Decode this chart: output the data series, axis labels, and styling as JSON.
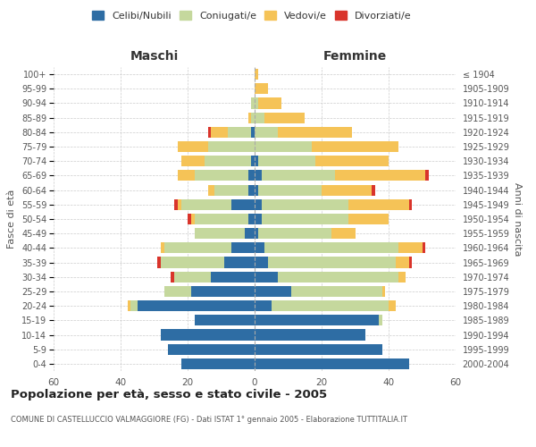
{
  "age_groups": [
    "0-4",
    "5-9",
    "10-14",
    "15-19",
    "20-24",
    "25-29",
    "30-34",
    "35-39",
    "40-44",
    "45-49",
    "50-54",
    "55-59",
    "60-64",
    "65-69",
    "70-74",
    "75-79",
    "80-84",
    "85-89",
    "90-94",
    "95-99",
    "100+"
  ],
  "birth_years": [
    "2000-2004",
    "1995-1999",
    "1990-1994",
    "1985-1989",
    "1980-1984",
    "1975-1979",
    "1970-1974",
    "1965-1969",
    "1960-1964",
    "1955-1959",
    "1950-1954",
    "1945-1949",
    "1940-1944",
    "1935-1939",
    "1930-1934",
    "1925-1929",
    "1920-1924",
    "1915-1919",
    "1910-1914",
    "1905-1909",
    "≤ 1904"
  ],
  "males": {
    "celibe": [
      22,
      26,
      28,
      18,
      35,
      19,
      13,
      9,
      7,
      3,
      2,
      7,
      2,
      2,
      1,
      0,
      1,
      0,
      0,
      0,
      0
    ],
    "coniugato": [
      0,
      0,
      0,
      0,
      2,
      8,
      11,
      19,
      20,
      15,
      16,
      15,
      10,
      16,
      14,
      14,
      7,
      1,
      1,
      0,
      0
    ],
    "vedovo": [
      0,
      0,
      0,
      0,
      1,
      0,
      0,
      0,
      1,
      0,
      1,
      1,
      2,
      5,
      7,
      9,
      5,
      1,
      0,
      0,
      0
    ],
    "divorziato": [
      0,
      0,
      0,
      0,
      0,
      0,
      1,
      1,
      0,
      0,
      1,
      1,
      0,
      0,
      0,
      0,
      1,
      0,
      0,
      0,
      0
    ]
  },
  "females": {
    "nubile": [
      46,
      38,
      33,
      37,
      5,
      11,
      7,
      4,
      3,
      1,
      2,
      2,
      1,
      2,
      1,
      0,
      0,
      0,
      0,
      0,
      0
    ],
    "coniugata": [
      0,
      0,
      0,
      1,
      35,
      27,
      36,
      38,
      40,
      22,
      26,
      26,
      19,
      22,
      17,
      17,
      7,
      3,
      1,
      0,
      0
    ],
    "vedova": [
      0,
      0,
      0,
      0,
      2,
      1,
      2,
      4,
      7,
      7,
      12,
      18,
      15,
      27,
      22,
      26,
      22,
      12,
      7,
      4,
      1
    ],
    "divorziata": [
      0,
      0,
      0,
      0,
      0,
      0,
      0,
      1,
      1,
      0,
      0,
      1,
      1,
      1,
      0,
      0,
      0,
      0,
      0,
      0,
      0
    ]
  },
  "colors": {
    "celibe_nubile": "#2E6DA4",
    "coniugato": "#C5D89D",
    "vedovo": "#F5C357",
    "divorziato": "#D9342B"
  },
  "xlim": 60,
  "title": "Popolazione per età, sesso e stato civile - 2005",
  "subtitle": "COMUNE DI CASTELLUCCIO VALMAGGIORE (FG) - Dati ISTAT 1° gennaio 2005 - Elaborazione TUTTITALIA.IT",
  "xlabel_left": "Maschi",
  "xlabel_right": "Femmine",
  "ylabel_left": "Fasce di età",
  "ylabel_right": "Anni di nascita",
  "legend_labels": [
    "Celibi/Nubili",
    "Coniugati/e",
    "Vedovi/e",
    "Divorziati/e"
  ],
  "background_color": "#ffffff",
  "bar_height": 0.75
}
